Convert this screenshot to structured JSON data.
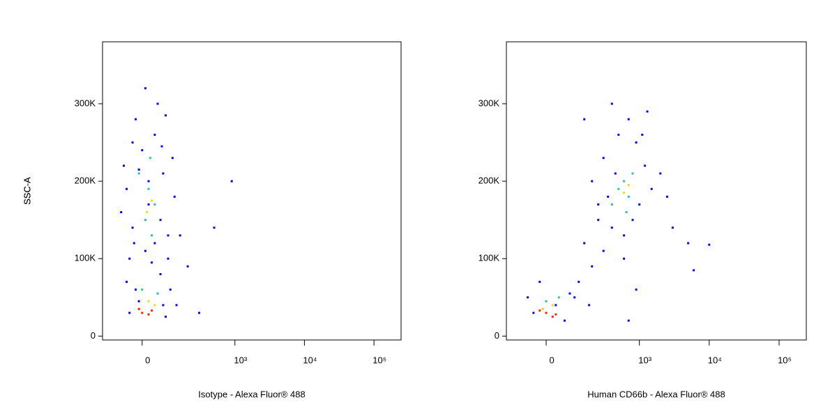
{
  "chart_data": [
    {
      "type": "scatter",
      "xlabel": "Isotype - Alexa Fluor® 488",
      "ylabel": "SSC-A",
      "xscale": "biexponential",
      "xlim": [
        -160,
        245000
      ],
      "ylim": [
        -5000,
        380000
      ],
      "xticks": [
        0,
        {
          "value": 1000,
          "label": "10³"
        },
        {
          "value": 10000,
          "label": "10⁴"
        },
        {
          "value": 100000,
          "label": "10⁵"
        }
      ],
      "yticks": [
        0,
        {
          "value": 100000,
          "label": "100K"
        },
        {
          "value": 200000,
          "label": "200K"
        },
        {
          "value": 300000,
          "label": "300K"
        }
      ],
      "series": [
        {
          "color": "#0000ff",
          "x": [
            -40,
            80,
            -20,
            60,
            10,
            -30,
            90,
            20,
            -50,
            70,
            0,
            40,
            -20,
            50,
            110,
            -60,
            30,
            100,
            -10,
            70,
            150,
            500,
            900,
            300,
            200,
            -40,
            60,
            -30,
            80,
            10,
            120,
            -70,
            40,
            90,
            -50,
            130,
            20,
            -10,
            65,
            -25
          ],
          "values": [
            30000,
            25000,
            60000,
            80000,
            110000,
            140000,
            130000,
            170000,
            190000,
            210000,
            240000,
            260000,
            280000,
            300000,
            230000,
            220000,
            95000,
            60000,
            45000,
            40000,
            130000,
            140000,
            200000,
            30000,
            90000,
            100000,
            150000,
            250000,
            285000,
            320000,
            180000,
            160000,
            120000,
            100000,
            70000,
            40000,
            200000,
            215000,
            245000,
            120000
          ]
        },
        {
          "color": "#20c8a0",
          "x": [
            20,
            40,
            10,
            30,
            0,
            50,
            -10,
            25
          ],
          "values": [
            190000,
            170000,
            150000,
            130000,
            60000,
            55000,
            210000,
            230000
          ]
        },
        {
          "color": "#e8e000",
          "x": [
            30,
            15,
            20,
            40
          ],
          "values": [
            175000,
            160000,
            45000,
            40000
          ]
        },
        {
          "color": "#ff2000",
          "x": [
            0,
            20,
            -10,
            30
          ],
          "values": [
            30000,
            28000,
            35000,
            33000
          ]
        }
      ]
    },
    {
      "type": "scatter",
      "xlabel": "Human CD66b - Alexa Fluor® 488",
      "ylabel": "SSC-A",
      "xscale": "biexponential",
      "xlim": [
        -160,
        245000
      ],
      "ylim": [
        -5000,
        380000
      ],
      "xticks": [
        0,
        {
          "value": 1000,
          "label": "10³"
        },
        {
          "value": 10000,
          "label": "10⁴"
        },
        {
          "value": 100000,
          "label": "10⁵"
        }
      ],
      "yticks": [
        0,
        {
          "value": 100000,
          "label": "100K"
        },
        {
          "value": 200000,
          "label": "200K"
        },
        {
          "value": 300000,
          "label": "300K"
        }
      ],
      "series": [
        {
          "color": "#0000ff",
          "x": [
            -40,
            60,
            -60,
            80,
            120,
            200,
            300,
            150,
            400,
            250,
            600,
            800,
            1000,
            1500,
            500,
            300,
            700,
            900,
            200,
            350,
            1200,
            2000,
            3000,
            5000,
            10000,
            6000,
            600,
            900,
            400,
            1300,
            150,
            100,
            -20,
            30,
            180,
            700,
            2500,
            450,
            1100,
            250
          ],
          "values": [
            30000,
            20000,
            50000,
            55000,
            70000,
            90000,
            110000,
            120000,
            140000,
            150000,
            130000,
            150000,
            170000,
            190000,
            260000,
            230000,
            280000,
            250000,
            200000,
            180000,
            220000,
            210000,
            140000,
            120000,
            118000,
            85000,
            100000,
            60000,
            300000,
            290000,
            280000,
            50000,
            70000,
            40000,
            40000,
            20000,
            180000,
            210000,
            260000,
            170000
          ]
        },
        {
          "color": "#20c8a0",
          "x": [
            500,
            700,
            600,
            400,
            800,
            650,
            0,
            40
          ],
          "values": [
            190000,
            180000,
            200000,
            170000,
            210000,
            160000,
            45000,
            50000
          ]
        },
        {
          "color": "#e8e000",
          "x": [
            600,
            700,
            20,
            -10
          ],
          "values": [
            185000,
            195000,
            40000,
            35000
          ]
        },
        {
          "color": "#ff2000",
          "x": [
            0,
            20,
            -20,
            30
          ],
          "values": [
            30000,
            25000,
            33000,
            28000
          ]
        }
      ]
    }
  ]
}
